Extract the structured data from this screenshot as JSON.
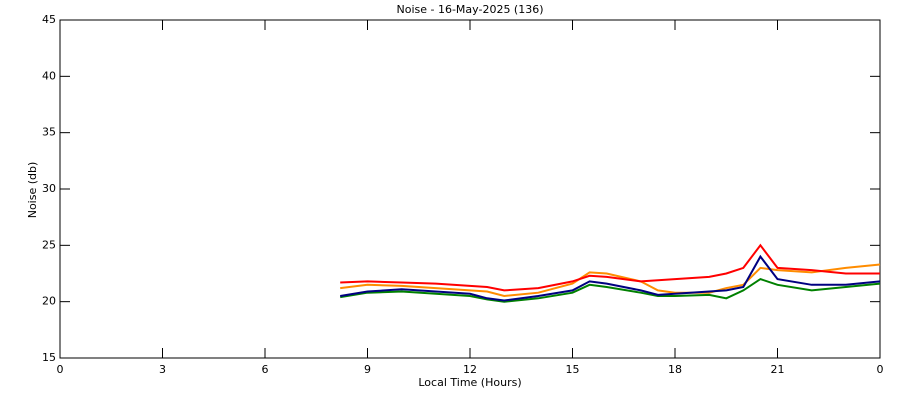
{
  "chart_data": {
    "type": "line",
    "title": "Noise - 16-May-2025 (136)",
    "x_label": "Local Time (Hours)",
    "y_label": "Noise (db)",
    "x": [
      8.2,
      9,
      10,
      11,
      12,
      12.5,
      13,
      14,
      15,
      15.5,
      16,
      17,
      17.5,
      18,
      19,
      19.5,
      20,
      20.5,
      21,
      22,
      23,
      24
    ],
    "series": [
      {
        "color": "#ff8c00",
        "values": [
          21.2,
          21.5,
          21.4,
          21.2,
          21.0,
          20.9,
          20.5,
          20.8,
          21.6,
          22.6,
          22.5,
          21.8,
          21.0,
          20.8,
          20.8,
          21.2,
          21.5,
          23.0,
          22.8,
          22.6,
          23.0,
          23.3
        ]
      },
      {
        "color": "#ff0000",
        "values": [
          21.7,
          21.8,
          21.7,
          21.6,
          21.4,
          21.3,
          21.0,
          21.2,
          21.8,
          22.3,
          22.2,
          21.8,
          21.9,
          22.0,
          22.2,
          22.5,
          23.0,
          25.0,
          23.0,
          22.8,
          22.5,
          22.5
        ]
      },
      {
        "color": "#008000",
        "values": [
          20.4,
          20.8,
          20.9,
          20.7,
          20.5,
          20.2,
          20.0,
          20.3,
          20.8,
          21.5,
          21.3,
          20.8,
          20.5,
          20.5,
          20.6,
          20.3,
          21.0,
          22.0,
          21.5,
          21.0,
          21.3,
          21.6
        ]
      },
      {
        "color": "#000080",
        "values": [
          20.5,
          20.9,
          21.1,
          20.9,
          20.7,
          20.3,
          20.1,
          20.5,
          21.0,
          21.8,
          21.6,
          21.0,
          20.6,
          20.7,
          20.9,
          21.0,
          21.3,
          24.0,
          22.0,
          21.5,
          21.5,
          21.8
        ]
      }
    ],
    "xlim": [
      0,
      24
    ],
    "xticks": [
      0,
      3,
      6,
      9,
      12,
      15,
      18,
      21,
      {
        "value": 24,
        "label": "0"
      }
    ],
    "ylim": [
      15,
      45
    ],
    "yticks": [
      15,
      20,
      25,
      30,
      35,
      40,
      45
    ]
  }
}
